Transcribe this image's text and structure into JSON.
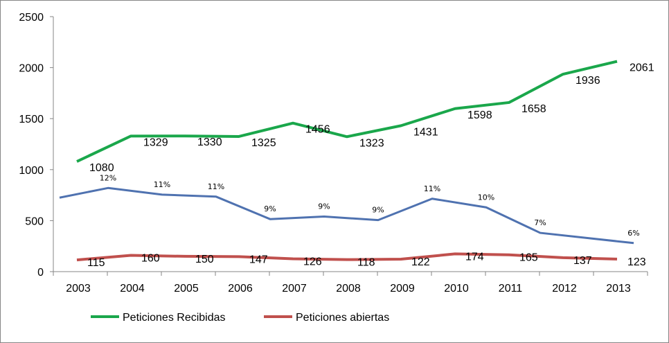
{
  "chart_data": {
    "type": "line",
    "title": "",
    "xlabel": "",
    "ylabel": "",
    "ylim": [
      0,
      2500
    ],
    "yticks": [
      "0",
      "500",
      "1000",
      "1500",
      "2000",
      "2500"
    ],
    "categories": [
      "2003",
      "2004",
      "2005",
      "2006",
      "2007",
      "2008",
      "2009",
      "2010",
      "2011",
      "2012",
      "2013"
    ],
    "grid": false,
    "legend_position": "bottom-left",
    "series": [
      {
        "name": "Peticiones Recibidas",
        "color": "#1aa74b",
        "values": [
          1080,
          1329,
          1330,
          1325,
          1456,
          1323,
          1431,
          1598,
          1658,
          1936,
          2061
        ],
        "labels": [
          "1080",
          "1329",
          "1330",
          "1325",
          "1456",
          "1323",
          "1431",
          "1598",
          "1658",
          "1936",
          "2061"
        ]
      },
      {
        "name": "",
        "color": "#4f72b0",
        "x_offset_half": true,
        "values": [
          725,
          820,
          755,
          735,
          515,
          540,
          505,
          715,
          630,
          380,
          280
        ],
        "labels": [
          "",
          "12%",
          "11%",
          "11%",
          "9%",
          "9%",
          "9%",
          "11%",
          "10%",
          "7%",
          "6%"
        ]
      },
      {
        "name": "Peticiones abiertas",
        "color": "#c0504d",
        "values": [
          115,
          160,
          150,
          147,
          126,
          118,
          122,
          174,
          165,
          137,
          123
        ],
        "labels": [
          "115",
          "160",
          "150",
          "147",
          "126",
          "118",
          "122",
          "174",
          "165",
          "137",
          "123"
        ]
      }
    ]
  }
}
